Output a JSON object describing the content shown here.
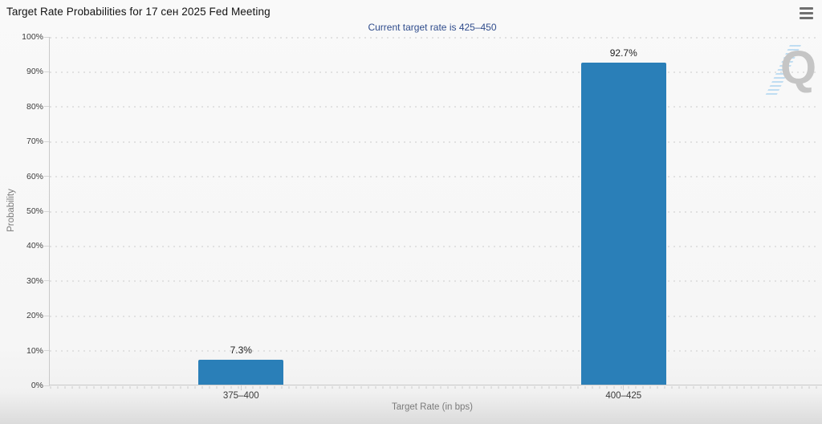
{
  "header": {
    "title": "Target Rate Probabilities for 17 сен 2025 Fed Meeting"
  },
  "watermark": {
    "letter": "Q"
  },
  "chart_data": {
    "type": "bar",
    "title": "Target Rate Probabilities for 17 сен 2025 Fed Meeting",
    "subtitle": "Current target rate is 425–450",
    "categories": [
      "375–400",
      "400–425"
    ],
    "values": [
      7.3,
      92.7
    ],
    "value_labels": [
      "7.3%",
      "92.7%"
    ],
    "xlabel": "Target Rate (in bps)",
    "ylabel": "Probability",
    "ylim": [
      0,
      100
    ],
    "ytick_step": 10,
    "ytick_suffix": "%",
    "grid": "dotted-horizontal",
    "legend": "none",
    "bar_color": "#2a7fb8",
    "subtitle_color": "#2f4c8c"
  }
}
